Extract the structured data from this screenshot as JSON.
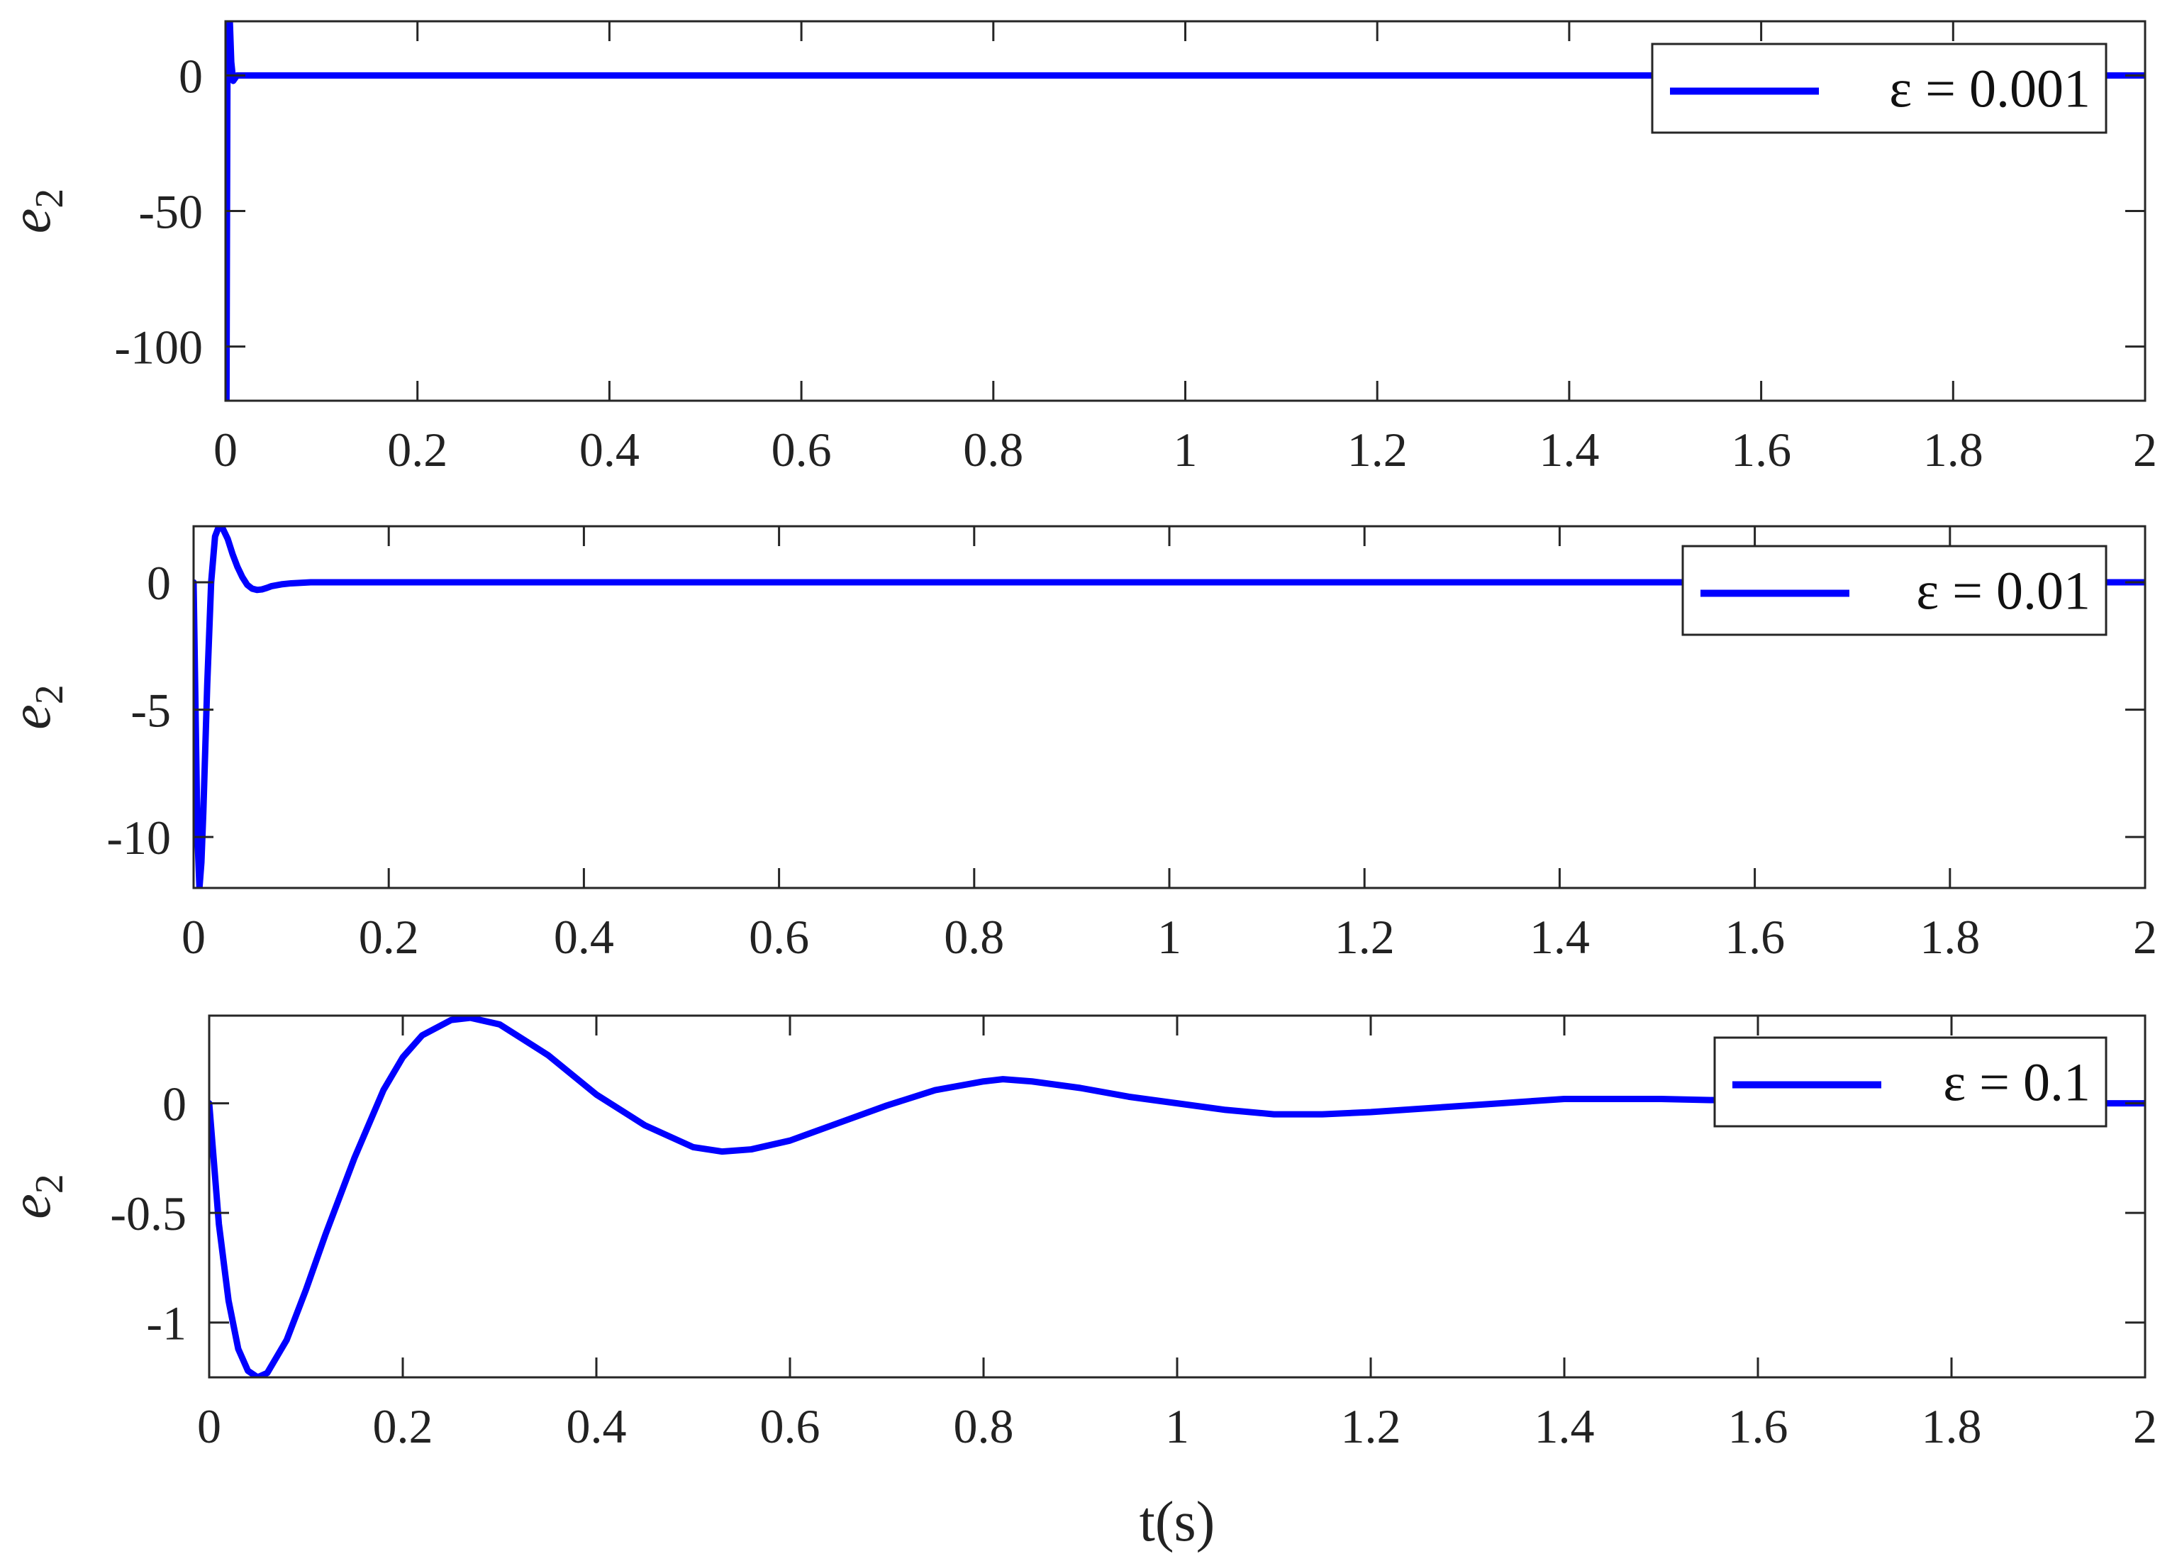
{
  "chart_data": [
    {
      "type": "line",
      "ylabel_base": "e",
      "ylabel_sub": "2",
      "xlabel": "",
      "xlim": [
        0,
        2
      ],
      "ylim": [
        -120,
        20
      ],
      "x_ticks": [
        0,
        0.2,
        0.4,
        0.6,
        0.8,
        1,
        1.2,
        1.4,
        1.6,
        1.8,
        2
      ],
      "x_tick_labels": [
        "0",
        "0.2",
        "0.4",
        "0.6",
        "0.8",
        "1",
        "1.2",
        "1.4",
        "1.6",
        "1.8",
        "2"
      ],
      "y_ticks": [
        -100,
        -50,
        0
      ],
      "y_tick_labels": [
        "-100",
        "-50",
        "0"
      ],
      "legend_position": "top-right",
      "grid": false,
      "series": [
        {
          "name": "ε = 0.001",
          "color": "#0000ff",
          "x": [
            0,
            0.0005,
            0.001,
            0.0015,
            0.002,
            0.003,
            0.004,
            0.006,
            0.008,
            0.012,
            0.02,
            0.1,
            0.5,
            1,
            1.5,
            2
          ],
          "y": [
            0,
            -120,
            -125,
            -60,
            0,
            40,
            25,
            5,
            -2,
            0,
            0,
            0,
            0,
            0,
            0,
            0
          ]
        }
      ]
    },
    {
      "type": "line",
      "ylabel_base": "e",
      "ylabel_sub": "2",
      "xlabel": "",
      "xlim": [
        0,
        2
      ],
      "ylim": [
        -12,
        2.2
      ],
      "x_ticks": [
        0,
        0.2,
        0.4,
        0.6,
        0.8,
        1,
        1.2,
        1.4,
        1.6,
        1.8,
        2
      ],
      "x_tick_labels": [
        "0",
        "0.2",
        "0.4",
        "0.6",
        "0.8",
        "1",
        "1.2",
        "1.4",
        "1.6",
        "1.8",
        "2"
      ],
      "y_ticks": [
        -10,
        -5,
        0
      ],
      "y_tick_labels": [
        "-10",
        "-5",
        "0"
      ],
      "legend_position": "top-right",
      "grid": false,
      "series": [
        {
          "name": "ε = 0.01",
          "color": "#0000ff",
          "x": [
            0,
            0.002,
            0.004,
            0.006,
            0.008,
            0.01,
            0.014,
            0.018,
            0.022,
            0.026,
            0.03,
            0.035,
            0.04,
            0.045,
            0.05,
            0.055,
            0.06,
            0.065,
            0.07,
            0.075,
            0.08,
            0.09,
            0.1,
            0.11,
            0.12,
            0.15,
            0.2,
            0.5,
            1,
            1.5,
            2
          ],
          "y": [
            0,
            -5,
            -10,
            -12,
            -11,
            -9,
            -4,
            0,
            1.8,
            2.2,
            2.1,
            1.7,
            1.1,
            0.6,
            0.2,
            -0.1,
            -0.25,
            -0.3,
            -0.28,
            -0.22,
            -0.15,
            -0.08,
            -0.04,
            -0.02,
            0,
            0,
            0,
            0,
            0,
            0,
            0
          ]
        }
      ]
    },
    {
      "type": "line",
      "ylabel_base": "e",
      "ylabel_sub": "2",
      "xlabel": "t(s)",
      "xlim": [
        0,
        2
      ],
      "ylim": [
        -1.25,
        0.4
      ],
      "x_ticks": [
        0,
        0.2,
        0.4,
        0.6,
        0.8,
        1,
        1.2,
        1.4,
        1.6,
        1.8,
        2
      ],
      "x_tick_labels": [
        "0",
        "0.2",
        "0.4",
        "0.6",
        "0.8",
        "1",
        "1.2",
        "1.4",
        "1.6",
        "1.8",
        "2"
      ],
      "y_ticks": [
        -1,
        -0.5,
        0
      ],
      "y_tick_labels": [
        "-1",
        "-0.5",
        "0"
      ],
      "legend_position": "top-right",
      "grid": false,
      "series": [
        {
          "name": "ε = 0.1",
          "color": "#0000ff",
          "x": [
            0,
            0.01,
            0.02,
            0.03,
            0.04,
            0.05,
            0.06,
            0.08,
            0.1,
            0.12,
            0.15,
            0.18,
            0.2,
            0.22,
            0.25,
            0.27,
            0.3,
            0.35,
            0.4,
            0.45,
            0.5,
            0.53,
            0.56,
            0.6,
            0.65,
            0.7,
            0.75,
            0.8,
            0.82,
            0.85,
            0.9,
            0.95,
            1,
            1.05,
            1.1,
            1.15,
            1.2,
            1.3,
            1.4,
            1.5,
            1.6,
            1.7,
            1.8,
            1.9,
            2
          ],
          "y": [
            0,
            -0.55,
            -0.9,
            -1.12,
            -1.22,
            -1.25,
            -1.23,
            -1.08,
            -0.85,
            -0.6,
            -0.25,
            0.06,
            0.21,
            0.31,
            0.38,
            0.39,
            0.36,
            0.22,
            0.04,
            -0.1,
            -0.2,
            -0.22,
            -0.21,
            -0.17,
            -0.09,
            -0.01,
            0.06,
            0.1,
            0.11,
            0.1,
            0.07,
            0.03,
            0,
            -0.03,
            -0.05,
            -0.05,
            -0.04,
            -0.01,
            0.02,
            0.02,
            0.01,
            0,
            0,
            0,
            0
          ]
        }
      ]
    }
  ]
}
